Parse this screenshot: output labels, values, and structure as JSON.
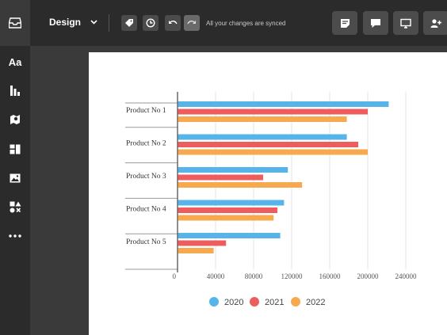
{
  "toolbar": {
    "design_label": "Design",
    "sync_status": "All your changes are synced"
  },
  "icons": {
    "logo": "inbox-tray-icon",
    "tag": "tag-icon",
    "history": "clock-icon",
    "undo": "undo-icon",
    "redo": "redo-icon",
    "notes": "sticky-note-icon",
    "comment": "comment-icon",
    "present": "monitor-icon",
    "share": "add-user-icon"
  },
  "sidebar": {
    "text_label": "Aa",
    "items": [
      "text",
      "charts",
      "maps",
      "layout",
      "images",
      "shapes",
      "more"
    ]
  },
  "colors": {
    "series_2020": "#56b4e9",
    "series_2021": "#ee5d5d",
    "series_2022": "#f7a94f"
  },
  "chart_data": {
    "type": "bar",
    "orientation": "horizontal",
    "categories": [
      "Product No 1",
      "Product No 2",
      "Product No 3",
      "Product No 4",
      "Product No 5"
    ],
    "series": [
      {
        "name": "2020",
        "color": "#56b4e9",
        "values": [
          222000,
          178000,
          116000,
          112000,
          108000
        ]
      },
      {
        "name": "2021",
        "color": "#ee5d5d",
        "values": [
          200000,
          190000,
          90000,
          105000,
          51000
        ]
      },
      {
        "name": "2022",
        "color": "#f7a94f",
        "values": [
          178000,
          200000,
          131000,
          101000,
          38000
        ]
      }
    ],
    "xticks": [
      "0",
      "40000",
      "80000",
      "120000",
      "160000",
      "200000",
      "240000"
    ],
    "xlim": [
      0,
      240000
    ],
    "grid": true,
    "legend": "bottom"
  }
}
